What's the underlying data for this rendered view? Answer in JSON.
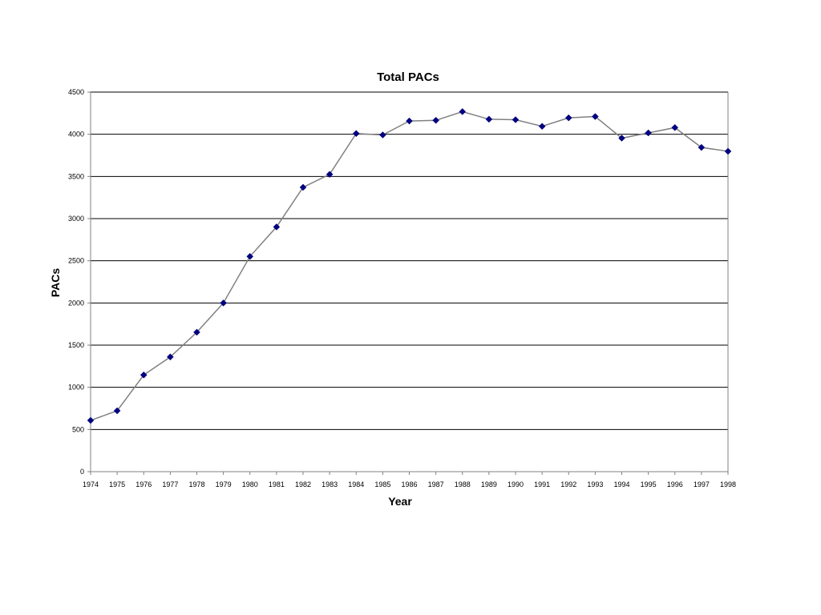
{
  "chart_data": {
    "type": "line",
    "title": "Total PACs",
    "xlabel": "Year",
    "ylabel": "PACs",
    "categories": [
      "1974",
      "1975",
      "1976",
      "1977",
      "1978",
      "1979",
      "1980",
      "1981",
      "1982",
      "1983",
      "1984",
      "1985",
      "1986",
      "1987",
      "1988",
      "1989",
      "1990",
      "1991",
      "1992",
      "1993",
      "1994",
      "1995",
      "1996",
      "1997",
      "1998"
    ],
    "series": [
      {
        "values": [
          608,
          722,
          1146,
          1360,
          1653,
          2000,
          2551,
          2901,
          3371,
          3525,
          4009,
          3992,
          4157,
          4165,
          4268,
          4178,
          4172,
          4094,
          4195,
          4210,
          3954,
          4016,
          4079,
          3844,
          3798
        ]
      }
    ],
    "ylim": [
      0,
      4500
    ],
    "yticks": [
      0,
      500,
      1000,
      1500,
      2000,
      2500,
      3000,
      3500,
      4000,
      4500
    ],
    "grid": true,
    "legend": "none",
    "colors": {
      "line": "#808080",
      "marker": "#000080",
      "grid": "#000000",
      "axis": "#808080"
    }
  }
}
